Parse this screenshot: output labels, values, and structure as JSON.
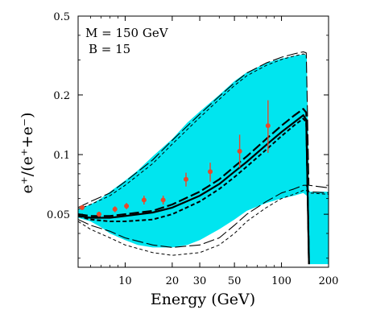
{
  "chart_data": {
    "type": "line",
    "xlabel": "Energy (GeV)",
    "ylabel": "e⁺/(e⁺+e⁻)",
    "x_scale": "log",
    "y_scale": "log",
    "xlim": [
      5,
      200
    ],
    "ylim": [
      0.027,
      0.5
    ],
    "x_ticks": [
      10,
      20,
      30,
      50,
      100,
      200
    ],
    "x_tick_labels": [
      "10",
      "20",
      "30",
      "50",
      "100",
      "200"
    ],
    "y_ticks": [
      0.05,
      0.1,
      0.2,
      0.5
    ],
    "y_tick_labels": [
      "0.05",
      "0.1",
      "0.2",
      "0.5"
    ],
    "annotations": [
      "M = 150 GeV",
      "B = 15"
    ],
    "band": {
      "color": "#00e5ef",
      "x": [
        5,
        6,
        7,
        8,
        10,
        12,
        15,
        20,
        25,
        30,
        40,
        50,
        60,
        80,
        100,
        120,
        138,
        145,
        150,
        200
      ],
      "lower": [
        0.048,
        0.046,
        0.043,
        0.04,
        0.037,
        0.035,
        0.034,
        0.034,
        0.035,
        0.037,
        0.042,
        0.047,
        0.052,
        0.057,
        0.06,
        0.062,
        0.064,
        0.062,
        0.028,
        0.028
      ],
      "upper": [
        0.053,
        0.056,
        0.06,
        0.065,
        0.074,
        0.083,
        0.098,
        0.12,
        0.145,
        0.165,
        0.2,
        0.235,
        0.26,
        0.29,
        0.305,
        0.315,
        0.32,
        0.318,
        0.065,
        0.065
      ]
    },
    "series": [
      {
        "style": "solid-thick",
        "x": [
          5,
          6,
          8,
          10,
          15,
          20,
          30,
          40,
          50,
          60,
          80,
          100,
          120,
          138,
          144,
          150
        ],
        "y": [
          0.049,
          0.048,
          0.048,
          0.049,
          0.051,
          0.054,
          0.062,
          0.071,
          0.082,
          0.092,
          0.112,
          0.13,
          0.145,
          0.158,
          0.15,
          0.028
        ]
      },
      {
        "style": "dashed-thick",
        "x": [
          5,
          6,
          8,
          10,
          15,
          20,
          30,
          40,
          50,
          60,
          80,
          100,
          120,
          138,
          144,
          150
        ],
        "y": [
          0.05,
          0.049,
          0.049,
          0.05,
          0.052,
          0.056,
          0.065,
          0.075,
          0.087,
          0.098,
          0.12,
          0.14,
          0.157,
          0.17,
          0.163,
          0.028
        ]
      },
      {
        "style": "short-dashed-thick",
        "x": [
          5,
          6,
          8,
          10,
          15,
          20,
          30,
          40,
          50,
          60,
          80,
          100,
          120,
          138,
          144,
          150
        ],
        "y": [
          0.049,
          0.047,
          0.046,
          0.046,
          0.047,
          0.05,
          0.058,
          0.067,
          0.077,
          0.087,
          0.106,
          0.124,
          0.14,
          0.152,
          0.145,
          0.028
        ]
      },
      {
        "style": "long-dash-thin",
        "x": [
          5,
          6,
          8,
          10,
          15,
          20,
          30,
          40,
          50,
          60,
          80,
          100,
          120,
          138,
          144,
          150,
          200
        ],
        "y": [
          0.054,
          0.058,
          0.064,
          0.073,
          0.094,
          0.118,
          0.16,
          0.197,
          0.23,
          0.258,
          0.29,
          0.31,
          0.322,
          0.33,
          0.326,
          0.07,
          0.068
        ]
      },
      {
        "style": "short-dash-thin",
        "x": [
          5,
          6,
          8,
          10,
          15,
          20,
          30,
          40,
          50,
          60,
          80,
          100,
          120,
          138,
          144
        ],
        "y": [
          0.053,
          0.056,
          0.062,
          0.07,
          0.09,
          0.113,
          0.154,
          0.19,
          0.223,
          0.25,
          0.282,
          0.302,
          0.314,
          0.322,
          0.318
        ]
      },
      {
        "style": "long-dash-thin",
        "x": [
          5,
          6,
          8,
          10,
          15,
          20,
          30,
          40,
          50,
          60,
          80,
          100,
          120,
          138,
          144,
          150,
          200
        ],
        "y": [
          0.047,
          0.044,
          0.041,
          0.038,
          0.035,
          0.034,
          0.035,
          0.038,
          0.044,
          0.05,
          0.058,
          0.064,
          0.067,
          0.07,
          0.07,
          0.065,
          0.064
        ]
      },
      {
        "style": "short-dash-thin",
        "x": [
          5,
          6,
          8,
          10,
          15,
          20,
          30,
          40,
          50,
          60,
          80,
          100,
          120,
          138,
          144,
          150,
          200
        ],
        "y": [
          0.046,
          0.042,
          0.038,
          0.035,
          0.032,
          0.031,
          0.032,
          0.035,
          0.04,
          0.046,
          0.054,
          0.06,
          0.063,
          0.066,
          0.066,
          0.064,
          0.063
        ]
      }
    ],
    "data_points": {
      "color": "#e8482a",
      "x": [
        5.3,
        6.8,
        8.6,
        10.2,
        13.2,
        17.5,
        24.5,
        35.0,
        54.0,
        82.0
      ],
      "y": [
        0.054,
        0.05,
        0.053,
        0.055,
        0.059,
        0.059,
        0.075,
        0.082,
        0.104,
        0.14
      ],
      "err_lo": [
        0.0015,
        0.0015,
        0.0018,
        0.002,
        0.003,
        0.003,
        0.006,
        0.009,
        0.018,
        0.038
      ],
      "err_hi": [
        0.0015,
        0.0015,
        0.0018,
        0.002,
        0.003,
        0.003,
        0.006,
        0.009,
        0.022,
        0.048
      ]
    }
  }
}
